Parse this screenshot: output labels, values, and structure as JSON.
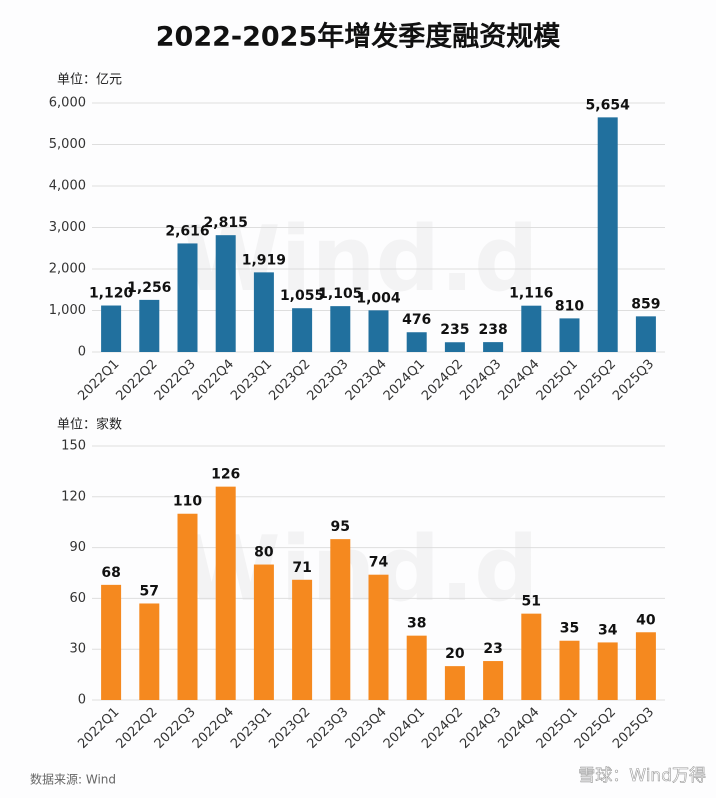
{
  "title": "2022-2025年增发季度融资规模",
  "source": "数据来源: Wind",
  "watermark": "Wind.d",
  "brand": "雪球：Wind万得",
  "chart_data": [
    {
      "type": "bar",
      "unit": "单位：亿元",
      "categories": [
        "2022Q1",
        "2022Q2",
        "2022Q3",
        "2022Q4",
        "2023Q1",
        "2023Q2",
        "2023Q3",
        "2023Q4",
        "2024Q1",
        "2024Q2",
        "2024Q3",
        "2024Q4",
        "2025Q1",
        "2025Q2",
        "2025Q3"
      ],
      "values": [
        1120,
        1256,
        2616,
        2815,
        1919,
        1055,
        1105,
        1004,
        476,
        235,
        238,
        1116,
        810,
        5654,
        859
      ],
      "value_labels": [
        "1,120",
        "1,256",
        "2,616",
        "2,815",
        "1,919",
        "1,055",
        "1,105",
        "1,004",
        "476",
        "235",
        "238",
        "1,116",
        "810",
        "5,654",
        "859"
      ],
      "color": "#21709e",
      "ylim": [
        0,
        6000
      ],
      "yticks": [
        0,
        {
          "value": 1000,
          "label": "1,000"
        },
        {
          "value": 2000,
          "label": "2,000"
        },
        {
          "value": 3000,
          "label": "3,000"
        },
        {
          "value": 4000,
          "label": "4,000"
        },
        {
          "value": 5000,
          "label": "5,000"
        },
        {
          "value": 6000,
          "label": "6,000"
        }
      ],
      "grid": true
    },
    {
      "type": "bar",
      "unit": "单位：家数",
      "categories": [
        "2022Q1",
        "2022Q2",
        "2022Q3",
        "2022Q4",
        "2023Q1",
        "2023Q2",
        "2023Q3",
        "2023Q4",
        "2024Q1",
        "2024Q2",
        "2024Q3",
        "2024Q4",
        "2025Q1",
        "2025Q2",
        "2025Q3"
      ],
      "values": [
        68,
        57,
        110,
        126,
        80,
        71,
        95,
        74,
        38,
        20,
        23,
        51,
        35,
        34,
        40
      ],
      "color": "#f5891f",
      "ylim": [
        0,
        150
      ],
      "yticks": [
        0,
        30,
        60,
        90,
        120,
        150
      ],
      "grid": true
    }
  ]
}
